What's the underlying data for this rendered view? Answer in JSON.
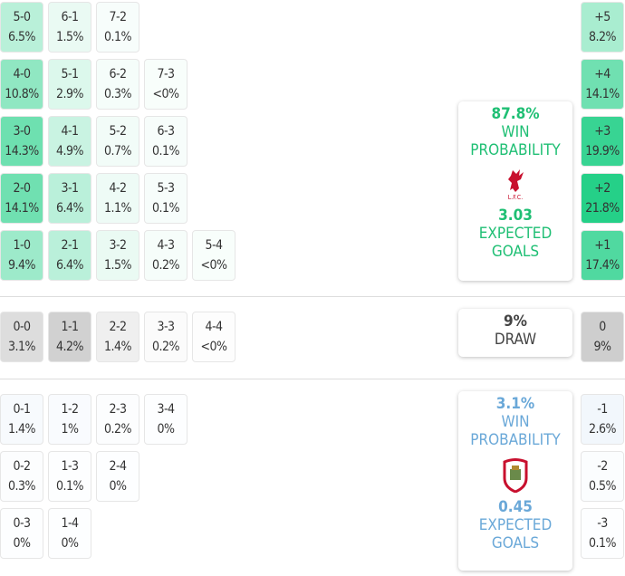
{
  "home": {
    "win_probability": "87.8%",
    "win_label": "WIN",
    "prob_label": "PROBABILITY",
    "expected_goals": "3.03",
    "xg_label": "EXPECTED",
    "goals_label": "GOALS",
    "crest_text": "L.F.C.",
    "color": "#1fcf85",
    "rows": [
      [
        [
          "5-0",
          "6.5%"
        ],
        [
          "6-1",
          "1.5%"
        ],
        [
          "7-2",
          "0.1%"
        ]
      ],
      [
        [
          "4-0",
          "10.8%"
        ],
        [
          "5-1",
          "2.9%"
        ],
        [
          "6-2",
          "0.3%"
        ],
        [
          "7-3",
          "<0%"
        ]
      ],
      [
        [
          "3-0",
          "14.3%"
        ],
        [
          "4-1",
          "4.9%"
        ],
        [
          "5-2",
          "0.7%"
        ],
        [
          "6-3",
          "0.1%"
        ]
      ],
      [
        [
          "2-0",
          "14.1%"
        ],
        [
          "3-1",
          "6.4%"
        ],
        [
          "4-2",
          "1.1%"
        ],
        [
          "5-3",
          "0.1%"
        ]
      ],
      [
        [
          "1-0",
          "9.4%"
        ],
        [
          "2-1",
          "6.4%"
        ],
        [
          "3-2",
          "1.5%"
        ],
        [
          "4-3",
          "0.2%"
        ],
        [
          "5-4",
          "<0%"
        ]
      ]
    ],
    "margins": [
      [
        "+5",
        "8.2%"
      ],
      [
        "+4",
        "14.1%"
      ],
      [
        "+3",
        "19.9%"
      ],
      [
        "+2",
        "21.8%"
      ],
      [
        "+1",
        "17.4%"
      ]
    ]
  },
  "draw": {
    "probability": "9%",
    "label": "DRAW",
    "color": "#c8c8c8",
    "row": [
      [
        "0-0",
        "3.1%"
      ],
      [
        "1-1",
        "4.2%"
      ],
      [
        "2-2",
        "1.4%"
      ],
      [
        "3-3",
        "0.2%"
      ],
      [
        "4-4",
        "<0%"
      ]
    ],
    "margin": [
      "0",
      "9%"
    ]
  },
  "away": {
    "win_probability": "3.1%",
    "win_label": "WIN",
    "prob_label": "PROBABILITY",
    "expected_goals": "0.45",
    "xg_label": "EXPECTED",
    "goals_label": "GOALS",
    "color": "#6aa8d8",
    "rows": [
      [
        [
          "0-1",
          "1.4%"
        ],
        [
          "1-2",
          "1%"
        ],
        [
          "2-3",
          "0.2%"
        ],
        [
          "3-4",
          "0%"
        ]
      ],
      [
        [
          "0-2",
          "0.3%"
        ],
        [
          "1-3",
          "0.1%"
        ],
        [
          "2-4",
          "0%"
        ]
      ],
      [
        [
          "0-3",
          "0%"
        ],
        [
          "1-4",
          "0%"
        ]
      ]
    ],
    "margins": [
      [
        "-1",
        "2.6%"
      ],
      [
        "-2",
        "0.5%"
      ],
      [
        "-3",
        "0.1%"
      ]
    ]
  }
}
